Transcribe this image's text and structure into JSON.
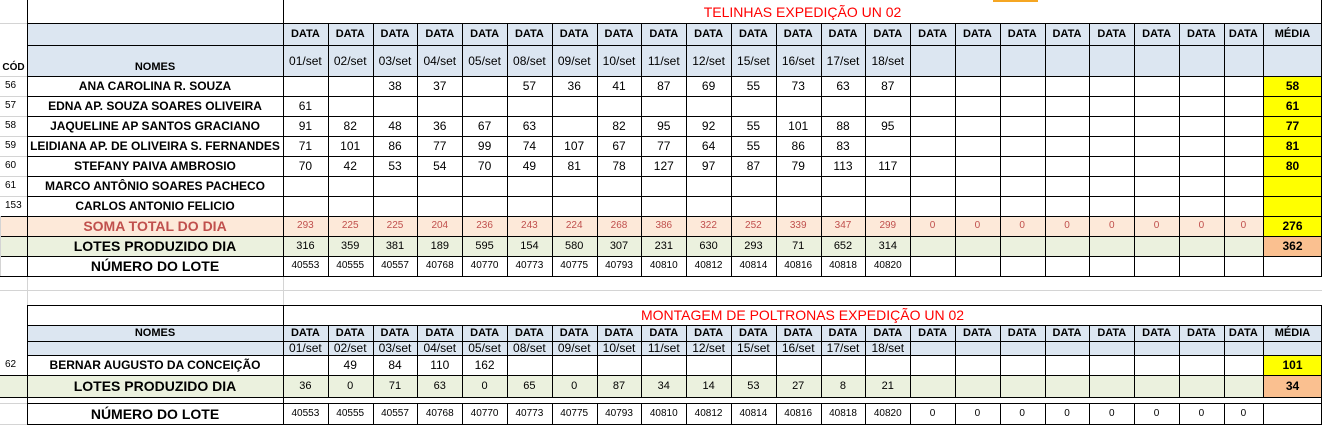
{
  "section1": {
    "title": "TELINHAS EXPEDIÇÃO UN 02",
    "col_header": "DATA",
    "dates": [
      "01/set",
      "02/set",
      "03/set",
      "04/set",
      "05/set",
      "08/set",
      "09/set",
      "10/set",
      "11/set",
      "12/set",
      "15/set",
      "16/set",
      "17/set",
      "18/set"
    ],
    "media_label": "MÉDIA",
    "cod_label": "CÓD",
    "nomes_label": "NOMES",
    "rows": [
      {
        "cod": "56",
        "name": "ANA CAROLINA R. SOUZA",
        "values": [
          "",
          "",
          "38",
          "37",
          "",
          "57",
          "36",
          "41",
          "87",
          "69",
          "55",
          "73",
          "63",
          "87"
        ],
        "media": "58"
      },
      {
        "cod": "57",
        "name": "EDNA AP. SOUZA SOARES OLIVEIRA",
        "values": [
          "61",
          "",
          "",
          "",
          "",
          "",
          "",
          "",
          "",
          "",
          "",
          "",
          "",
          ""
        ],
        "media": "61"
      },
      {
        "cod": "58",
        "name": "JAQUELINE AP SANTOS GRACIANO",
        "values": [
          "91",
          "82",
          "48",
          "36",
          "67",
          "63",
          "",
          "82",
          "95",
          "92",
          "55",
          "101",
          "88",
          "95"
        ],
        "media": "77"
      },
      {
        "cod": "59",
        "name": "LEIDIANA AP. DE OLIVEIRA S. FERNANDES",
        "values": [
          "71",
          "101",
          "86",
          "77",
          "99",
          "74",
          "107",
          "67",
          "77",
          "64",
          "55",
          "86",
          "83",
          ""
        ],
        "media": "81"
      },
      {
        "cod": "60",
        "name": "STEFANY PAIVA AMBROSIO",
        "values": [
          "70",
          "42",
          "53",
          "54",
          "70",
          "49",
          "81",
          "78",
          "127",
          "97",
          "87",
          "79",
          "113",
          "117"
        ],
        "media": "80"
      },
      {
        "cod": "61",
        "name": "MARCO ANTÔNIO SOARES PACHECO",
        "values": [
          "",
          "",
          "",
          "",
          "",
          "",
          "",
          "",
          "",
          "",
          "",
          "",
          "",
          ""
        ],
        "media": ""
      },
      {
        "cod": "153",
        "name": "CARLOS ANTONIO FELICIO",
        "values": [
          "",
          "",
          "",
          "",
          "",
          "",
          "",
          "",
          "",
          "",
          "",
          "",
          "",
          ""
        ],
        "media": ""
      }
    ],
    "soma": {
      "label": "SOMA TOTAL DO DIA",
      "values": [
        "293",
        "225",
        "225",
        "204",
        "236",
        "243",
        "224",
        "268",
        "386",
        "322",
        "252",
        "339",
        "347",
        "299",
        "0",
        "0",
        "0",
        "0",
        "0",
        "0",
        "0",
        "0"
      ],
      "media": "276"
    },
    "lotes": {
      "label": "LOTES PRODUZIDO DIA",
      "values": [
        "316",
        "359",
        "381",
        "189",
        "595",
        "154",
        "580",
        "307",
        "231",
        "630",
        "293",
        "71",
        "652",
        "314"
      ],
      "media": "362"
    },
    "numero": {
      "label": "NÚMERO DO LOTE",
      "values": [
        "40553",
        "40555",
        "40557",
        "40768",
        "40770",
        "40773",
        "40775",
        "40793",
        "40810",
        "40812",
        "40814",
        "40816",
        "40818",
        "40820"
      ]
    }
  },
  "section2": {
    "title": "MONTAGEM DE POLTRONAS EXPEDIÇÃO UN 02",
    "col_header": "DATA",
    "dates": [
      "01/set",
      "02/set",
      "03/set",
      "04/set",
      "05/set",
      "08/set",
      "09/set",
      "10/set",
      "11/set",
      "12/set",
      "15/set",
      "16/set",
      "17/set",
      "18/set"
    ],
    "media_label": "MÉDIA",
    "nomes_label": "NOMES",
    "row": {
      "cod": "62",
      "name": "BERNAR AUGUSTO DA CONCEIÇÃO",
      "values": [
        "",
        "49",
        "84",
        "110",
        "162",
        "",
        "",
        "",
        "",
        "",
        "",
        "",
        "",
        ""
      ],
      "media": "101"
    },
    "lotes": {
      "label": "LOTES PRODUZIDO DIA",
      "values": [
        "36",
        "0",
        "71",
        "63",
        "0",
        "65",
        "0",
        "87",
        "34",
        "14",
        "53",
        "27",
        "8",
        "21"
      ],
      "media": "34"
    },
    "numero": {
      "label": "NÚMERO DO LOTE",
      "values": [
        "40553",
        "40555",
        "40557",
        "40768",
        "40770",
        "40773",
        "40775",
        "40793",
        "40810",
        "40812",
        "40814",
        "40816",
        "40818",
        "40820",
        "0",
        "0",
        "0",
        "0",
        "0",
        "0",
        "0",
        "0"
      ]
    }
  }
}
